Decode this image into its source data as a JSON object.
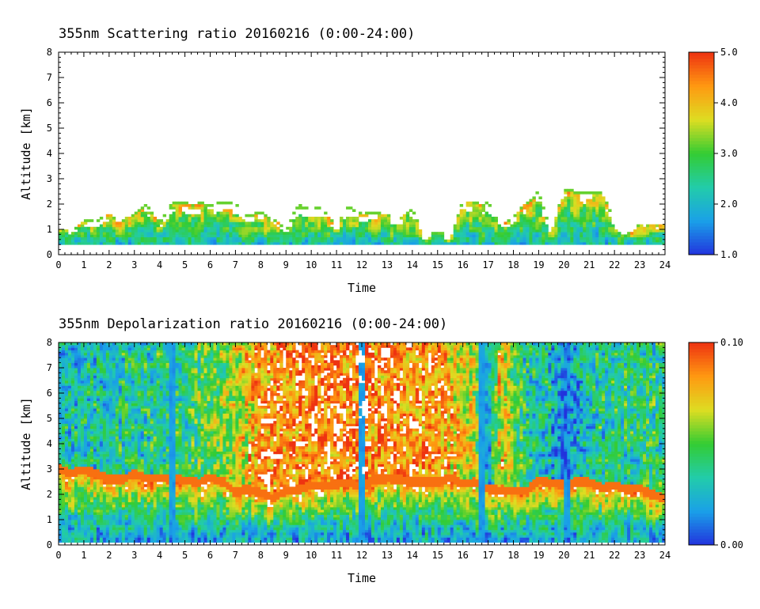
{
  "chart_data": [
    {
      "type": "heatmap",
      "title": "355nm Scattering ratio  20160216 (0:00-24:00)",
      "xlabel": "Time",
      "ylabel": "Altitude [km]",
      "xlim": [
        0,
        24
      ],
      "ylim": [
        0,
        8
      ],
      "x_ticks": [
        "0",
        "1",
        "2",
        "3",
        "4",
        "5",
        "6",
        "7",
        "8",
        "9",
        "10",
        "11",
        "12",
        "13",
        "14",
        "15",
        "16",
        "17",
        "18",
        "19",
        "20",
        "21",
        "22",
        "23",
        "24"
      ],
      "y_ticks": [
        "0",
        "1",
        "2",
        "3",
        "4",
        "5",
        "6",
        "7",
        "8"
      ],
      "colorbar": {
        "min": 1.0,
        "max": 5.0,
        "labels": [
          "1.0",
          "2.0",
          "3.0",
          "4.0",
          "5.0"
        ],
        "label_values": [
          1.0,
          2.0,
          3.0,
          4.0,
          5.0
        ]
      },
      "colormap": [
        "#2233dd",
        "#1aa0e8",
        "#22ccaa",
        "#33cc33",
        "#dddd22",
        "#ff9911",
        "#ee3311"
      ],
      "layer_top_km": [
        [
          0,
          1.1
        ],
        [
          0.5,
          0.9
        ],
        [
          1,
          1.4
        ],
        [
          1.5,
          1.2
        ],
        [
          2,
          1.6
        ],
        [
          2.5,
          1.3
        ],
        [
          3,
          1.6
        ],
        [
          3.5,
          2.0
        ],
        [
          4,
          1.3
        ],
        [
          4.5,
          2.1
        ],
        [
          5,
          2.1
        ],
        [
          6,
          2.0
        ],
        [
          7,
          2.1
        ],
        [
          7.5,
          1.5
        ],
        [
          8,
          1.7
        ],
        [
          8.5,
          1.4
        ],
        [
          9,
          1.0
        ],
        [
          9.5,
          2.0
        ],
        [
          10,
          1.9
        ],
        [
          10.5,
          1.8
        ],
        [
          11,
          1.2
        ],
        [
          11.5,
          1.9
        ],
        [
          12,
          1.7
        ],
        [
          12.5,
          1.7
        ],
        [
          13,
          1.6
        ],
        [
          13.5,
          1.4
        ],
        [
          14,
          1.8
        ],
        [
          14.5,
          0.5
        ],
        [
          15,
          1.1
        ],
        [
          15.5,
          0.6
        ],
        [
          16,
          2.1
        ],
        [
          16.5,
          2.1
        ],
        [
          17,
          2.1
        ],
        [
          17.5,
          1.3
        ],
        [
          18,
          1.4
        ],
        [
          18.5,
          2.1
        ],
        [
          19,
          2.5
        ],
        [
          19.5,
          1.0
        ],
        [
          20,
          2.6
        ],
        [
          20.5,
          2.5
        ],
        [
          21,
          2.5
        ],
        [
          21.5,
          2.4
        ],
        [
          22,
          1.3
        ],
        [
          22.5,
          0.9
        ],
        [
          23,
          1.2
        ],
        [
          23.5,
          1.2
        ],
        [
          24,
          1.3
        ]
      ]
    },
    {
      "type": "heatmap",
      "title": "355nm Depolarization ratio  20160216 (0:00-24:00)",
      "xlabel": "Time",
      "ylabel": "Altitude [km]",
      "xlim": [
        0,
        24
      ],
      "ylim": [
        0,
        8
      ],
      "x_ticks": [
        "0",
        "1",
        "2",
        "3",
        "4",
        "5",
        "6",
        "7",
        "8",
        "9",
        "10",
        "11",
        "12",
        "13",
        "14",
        "15",
        "16",
        "17",
        "18",
        "19",
        "20",
        "21",
        "22",
        "23",
        "24"
      ],
      "y_ticks": [
        "0",
        "1",
        "2",
        "3",
        "4",
        "5",
        "6",
        "7",
        "8"
      ],
      "colorbar": {
        "min": 0.0,
        "max": 0.1,
        "labels": [
          "0.00",
          "0.10"
        ],
        "label_values": [
          0.0,
          0.1
        ]
      },
      "colormap": [
        "#2233dd",
        "#1aa0e8",
        "#22ccaa",
        "#33cc33",
        "#dddd22",
        "#ff9911",
        "#ee3311"
      ],
      "boundary_layer_top_km": [
        [
          0,
          2.8
        ],
        [
          2,
          2.6
        ],
        [
          4,
          2.5
        ],
        [
          6,
          2.3
        ],
        [
          7.5,
          2.0
        ],
        [
          8,
          1.8
        ],
        [
          10,
          2.0
        ],
        [
          12,
          2.2
        ],
        [
          14,
          2.4
        ],
        [
          16,
          2.3
        ],
        [
          17,
          2.0
        ],
        [
          19,
          2.2
        ],
        [
          21,
          2.4
        ],
        [
          22,
          2.0
        ],
        [
          24,
          1.8
        ]
      ],
      "free_troposphere_depol": [
        [
          0,
          0.03
        ],
        [
          3,
          0.035
        ],
        [
          5,
          0.04
        ],
        [
          7,
          0.06
        ],
        [
          8,
          0.085
        ],
        [
          10,
          0.09
        ],
        [
          13,
          0.09
        ],
        [
          15,
          0.085
        ],
        [
          16.5,
          0.06
        ],
        [
          17,
          0.02
        ],
        [
          17.5,
          0.075
        ],
        [
          18.5,
          0.035
        ],
        [
          19.5,
          0.03
        ],
        [
          20,
          0.01
        ],
        [
          21,
          0.035
        ],
        [
          23,
          0.04
        ],
        [
          24,
          0.04
        ]
      ],
      "low_depol_columns_h": [
        4.5,
        12.0,
        16.8,
        20.1
      ]
    }
  ]
}
